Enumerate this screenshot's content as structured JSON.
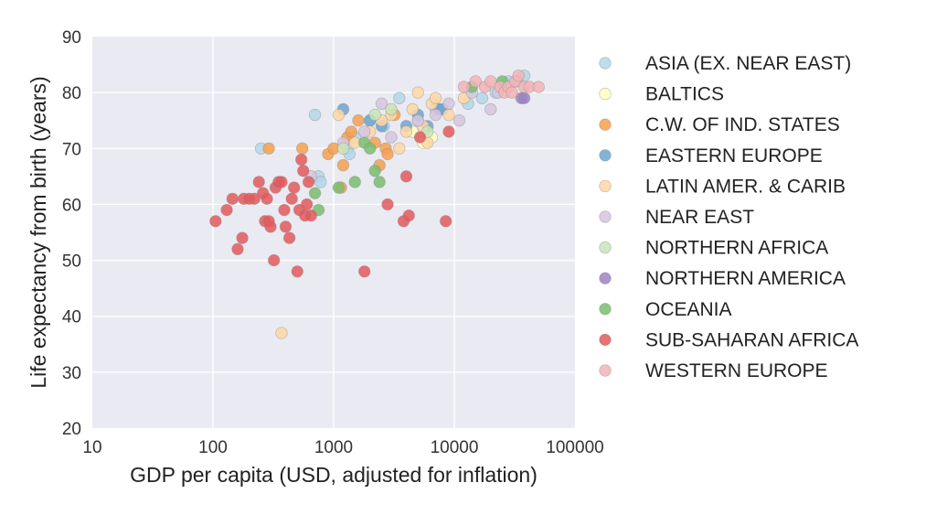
{
  "chart_data": {
    "type": "scatter",
    "xscale": "log",
    "xlim": [
      10,
      100000
    ],
    "ylim": [
      20,
      90
    ],
    "xticks": [
      "10",
      "100",
      "1000",
      "10000",
      "100000"
    ],
    "yticks": [
      "20",
      "30",
      "40",
      "50",
      "60",
      "70",
      "80",
      "90"
    ],
    "xlabel": "GDP per capita (USD, adjusted for inflation)",
    "ylabel": "Life expectancy from birth (years)",
    "grid": true,
    "legend_position": "right",
    "series": [
      {
        "name": "ASIA (EX. NEAR EAST)",
        "color": "#b4d7e8",
        "points": [
          [
            700,
            76
          ],
          [
            750,
            65
          ],
          [
            780,
            64
          ],
          [
            1300,
            70
          ],
          [
            1350,
            69
          ],
          [
            1500,
            72
          ],
          [
            2000,
            75
          ],
          [
            2600,
            74
          ],
          [
            3500,
            79
          ],
          [
            5000,
            75
          ],
          [
            7000,
            77
          ],
          [
            13000,
            78
          ],
          [
            17000,
            79
          ],
          [
            22000,
            80
          ],
          [
            28000,
            82
          ],
          [
            38000,
            83
          ],
          [
            250,
            70
          ]
        ]
      },
      {
        "name": "BALTICS",
        "color": "#ffffbf",
        "points": [
          [
            5500,
            71
          ],
          [
            6500,
            72
          ],
          [
            4500,
            73
          ]
        ]
      },
      {
        "name": "C.W. OF IND. STATES",
        "color": "#f5a04f",
        "points": [
          [
            550,
            70
          ],
          [
            900,
            69
          ],
          [
            1000,
            70
          ],
          [
            1200,
            67
          ],
          [
            1300,
            72
          ],
          [
            1400,
            73
          ],
          [
            1600,
            75
          ],
          [
            2200,
            71
          ],
          [
            2400,
            67
          ],
          [
            2700,
            70
          ],
          [
            2800,
            69
          ],
          [
            3200,
            76
          ],
          [
            290,
            70
          ],
          [
            1150,
            63
          ]
        ]
      },
      {
        "name": "EASTERN EUROPE",
        "color": "#6ea6d1",
        "points": [
          [
            1200,
            77
          ],
          [
            2000,
            75
          ],
          [
            2500,
            74
          ],
          [
            4000,
            74
          ],
          [
            5000,
            76
          ],
          [
            6000,
            74
          ],
          [
            7500,
            77
          ],
          [
            8000,
            77
          ]
        ]
      },
      {
        "name": "LATIN AMER. & CARIB",
        "color": "#fed7a5",
        "points": [
          [
            370,
            37
          ],
          [
            1100,
            76
          ],
          [
            1500,
            71
          ],
          [
            2000,
            73
          ],
          [
            2500,
            75
          ],
          [
            3000,
            76
          ],
          [
            3500,
            70
          ],
          [
            4000,
            73
          ],
          [
            4500,
            77
          ],
          [
            5000,
            80
          ],
          [
            5500,
            74
          ],
          [
            6000,
            71
          ],
          [
            6500,
            78
          ],
          [
            7000,
            79
          ],
          [
            9000,
            76
          ],
          [
            12000,
            79
          ]
        ]
      },
      {
        "name": "NEAR EAST",
        "color": "#d5c5df",
        "points": [
          [
            650,
            65
          ],
          [
            1200,
            71
          ],
          [
            1800,
            73
          ],
          [
            2500,
            78
          ],
          [
            3000,
            72
          ],
          [
            5000,
            75
          ],
          [
            7000,
            76
          ],
          [
            9000,
            78
          ],
          [
            11000,
            75
          ],
          [
            14000,
            80
          ],
          [
            20000,
            77
          ],
          [
            23000,
            80
          ],
          [
            33000,
            82
          ]
        ]
      },
      {
        "name": "NORTHERN AFRICA",
        "color": "#c9e5b6",
        "points": [
          [
            1200,
            70
          ],
          [
            2200,
            76
          ],
          [
            3000,
            77
          ],
          [
            6000,
            73
          ]
        ]
      },
      {
        "name": "NORTHERN AMERICA",
        "color": "#9b84c3",
        "points": [
          [
            36000,
            79
          ],
          [
            38000,
            79
          ]
        ]
      },
      {
        "name": "OCEANIA",
        "color": "#79bd6f",
        "points": [
          [
            1100,
            63
          ],
          [
            1500,
            64
          ],
          [
            1800,
            71
          ],
          [
            2000,
            70
          ],
          [
            2200,
            66
          ],
          [
            2400,
            64
          ],
          [
            700,
            62
          ],
          [
            750,
            59
          ],
          [
            14000,
            81
          ],
          [
            25000,
            82
          ]
        ]
      },
      {
        "name": "SUB-SAHARAN AFRICA",
        "color": "#e3595c",
        "points": [
          [
            105,
            57
          ],
          [
            130,
            59
          ],
          [
            145,
            61
          ],
          [
            160,
            52
          ],
          [
            175,
            54
          ],
          [
            180,
            61
          ],
          [
            200,
            61
          ],
          [
            220,
            61
          ],
          [
            240,
            64
          ],
          [
            260,
            62
          ],
          [
            270,
            57
          ],
          [
            280,
            61
          ],
          [
            290,
            57
          ],
          [
            300,
            56
          ],
          [
            320,
            50
          ],
          [
            330,
            63
          ],
          [
            350,
            64
          ],
          [
            370,
            64
          ],
          [
            390,
            59
          ],
          [
            400,
            56
          ],
          [
            430,
            54
          ],
          [
            450,
            61
          ],
          [
            470,
            63
          ],
          [
            500,
            48
          ],
          [
            520,
            59
          ],
          [
            560,
            66
          ],
          [
            580,
            58
          ],
          [
            600,
            60
          ],
          [
            620,
            64
          ],
          [
            650,
            58
          ],
          [
            540,
            68
          ],
          [
            1800,
            48
          ],
          [
            2800,
            60
          ],
          [
            3800,
            57
          ],
          [
            4200,
            58
          ],
          [
            8500,
            57
          ],
          [
            9000,
            73
          ],
          [
            4000,
            65
          ],
          [
            5200,
            72
          ]
        ]
      },
      {
        "name": "WESTERN EUROPE",
        "color": "#f3b3b6",
        "points": [
          [
            12000,
            81
          ],
          [
            15000,
            82
          ],
          [
            18000,
            81
          ],
          [
            20000,
            82
          ],
          [
            24000,
            81
          ],
          [
            26000,
            80
          ],
          [
            28000,
            81
          ],
          [
            30000,
            80
          ],
          [
            32000,
            82
          ],
          [
            34000,
            83
          ],
          [
            38000,
            81
          ],
          [
            42000,
            81
          ],
          [
            50000,
            81
          ]
        ]
      }
    ]
  }
}
